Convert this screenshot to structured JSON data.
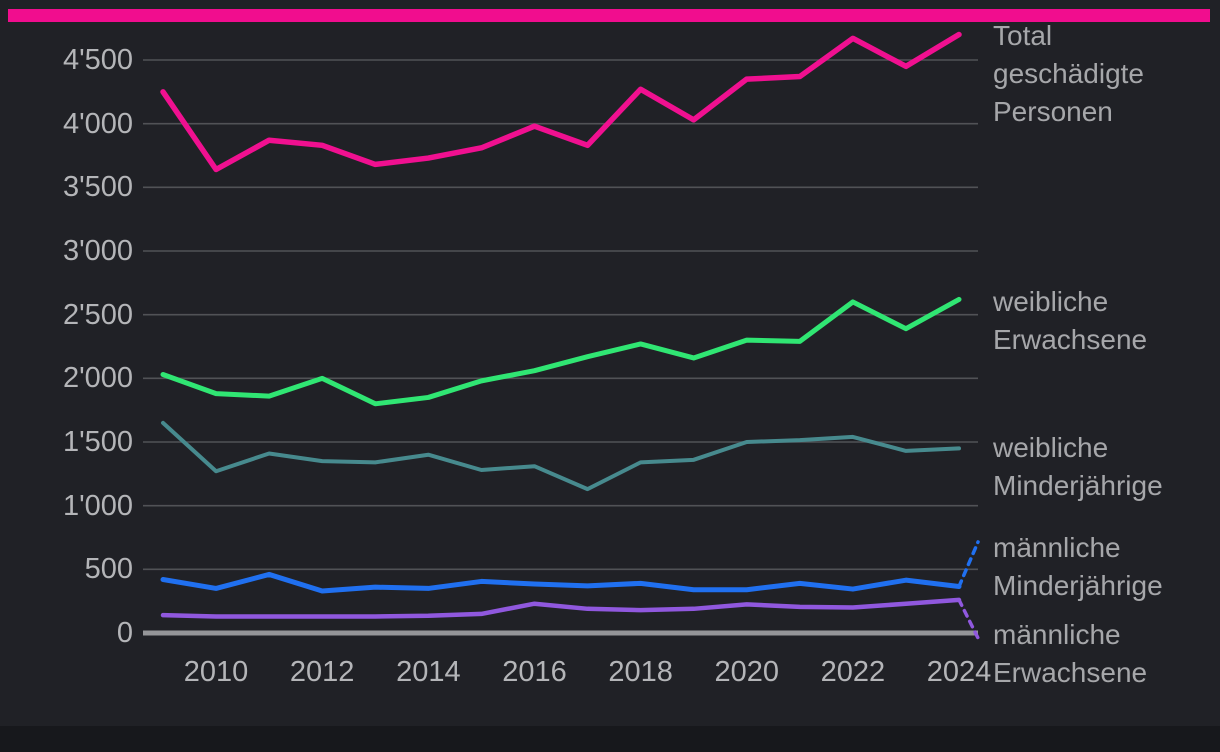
{
  "page": {
    "background": "#202126",
    "accent_bar_color": "#F10D8E",
    "footer_color": "#17181C",
    "grid_color": "#515256",
    "axis_line_color": "#949598",
    "tick_text_color": "#B4B5B8",
    "label_text_color": "#A6A7AA"
  },
  "chart_data": {
    "type": "line",
    "title": "",
    "xlabel": "",
    "ylabel": "",
    "x": [
      2009,
      2010,
      2011,
      2012,
      2013,
      2014,
      2015,
      2016,
      2017,
      2018,
      2019,
      2020,
      2021,
      2022,
      2023,
      2024
    ],
    "xticks": [
      "2010",
      "2012",
      "2014",
      "2016",
      "2018",
      "2020",
      "2022",
      "2024"
    ],
    "yticks": [
      {
        "value": 0,
        "label": "0"
      },
      {
        "value": 500,
        "label": "500"
      },
      {
        "value": 1000,
        "label": "1'000"
      },
      {
        "value": 1500,
        "label": "1'500"
      },
      {
        "value": 2000,
        "label": "2'000"
      },
      {
        "value": 2500,
        "label": "2'500"
      },
      {
        "value": 3000,
        "label": "3'000"
      },
      {
        "value": 3500,
        "label": "3'500"
      },
      {
        "value": 4000,
        "label": "4'000"
      },
      {
        "value": 4500,
        "label": "4'500"
      }
    ],
    "ylim": [
      0,
      4700
    ],
    "grid": "horizontal",
    "legend_position": "right-inline-labels",
    "series": [
      {
        "name": "Total geschädigte Personen",
        "label_lines": [
          "Total",
          "geschädigte",
          "Personen"
        ],
        "color": "#F01090",
        "leader": "none",
        "values": [
          4250,
          3640,
          3870,
          3830,
          3680,
          3730,
          3810,
          3980,
          3830,
          4270,
          4030,
          4350,
          4370,
          4670,
          4450,
          4700
        ]
      },
      {
        "name": "weibliche Erwachsene",
        "label_lines": [
          "weibliche",
          "Erwachsene"
        ],
        "color": "#30E673",
        "leader": "none",
        "values": [
          2030,
          1880,
          1860,
          2000,
          1800,
          1850,
          1980,
          2060,
          2170,
          2270,
          2160,
          2300,
          2290,
          2600,
          2390,
          2620
        ]
      },
      {
        "name": "weibliche Minderjährige",
        "label_lines": [
          "weibliche",
          "Minderjährige"
        ],
        "color": "#478A8E",
        "leader": "none",
        "values": [
          1650,
          1270,
          1410,
          1350,
          1340,
          1400,
          1280,
          1310,
          1130,
          1340,
          1360,
          1500,
          1515,
          1540,
          1430,
          1450
        ]
      },
      {
        "name": "männliche Minderjährige",
        "label_lines": [
          "männliche",
          "Minderjährige"
        ],
        "color": "#2070F0",
        "leader": "up",
        "values": [
          420,
          350,
          460,
          330,
          360,
          350,
          405,
          385,
          370,
          390,
          340,
          340,
          390,
          345,
          415,
          365
        ]
      },
      {
        "name": "männliche Erwachsene",
        "label_lines": [
          "männliche",
          "Erwachsene"
        ],
        "color": "#9058DE",
        "leader": "down",
        "values": [
          140,
          130,
          130,
          130,
          130,
          135,
          150,
          230,
          190,
          180,
          190,
          225,
          205,
          200,
          230,
          260
        ]
      }
    ]
  }
}
